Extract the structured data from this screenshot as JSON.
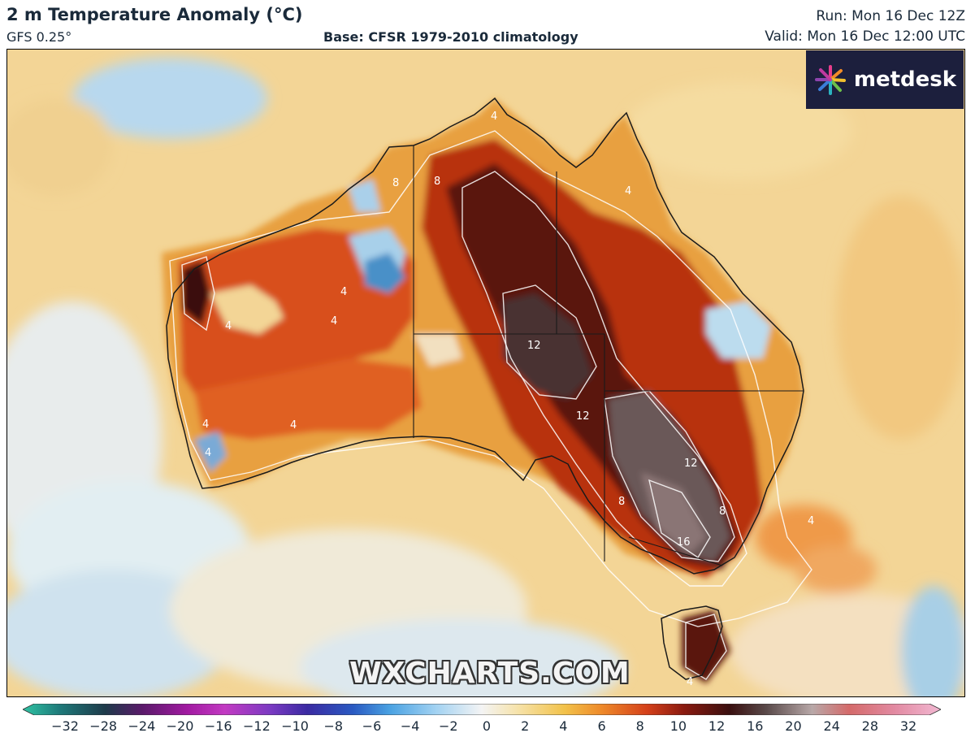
{
  "header": {
    "title": "2 m Temperature Anomaly (°C)",
    "model": "GFS 0.25°",
    "base": "Base: CFSR 1979-2010 climatology",
    "run": "Run: Mon 16 Dec 12Z",
    "valid": "Valid: Mon 16 Dec 12:00 UTC"
  },
  "logo": {
    "text": "metdesk",
    "icon": "starburst-logo-icon"
  },
  "watermark": "WXCHARTS.COM",
  "map": {
    "region": "Australia",
    "contour_labels": [
      "8",
      "8",
      "4",
      "4",
      "4",
      "4",
      "4",
      "12",
      "12",
      "12",
      "8",
      "8",
      "16",
      "4",
      "4",
      "4",
      "4",
      "4"
    ]
  },
  "colorbar": {
    "ticks": [
      "−32",
      "−28",
      "−24",
      "−20",
      "−16",
      "−12",
      "−10",
      "−8",
      "−6",
      "−4",
      "−2",
      "0",
      "2",
      "4",
      "6",
      "8",
      "10",
      "12",
      "16",
      "20",
      "24",
      "28",
      "32"
    ],
    "colors": [
      "#2fc4a4",
      "#1e7a7a",
      "#1e3a4a",
      "#5a1a6a",
      "#a21aa2",
      "#c23ac2",
      "#7a3ac2",
      "#3a2aa2",
      "#2a5ac2",
      "#4aa2e2",
      "#a2d2f2",
      "#f4f4f4",
      "#f6e2a8",
      "#f2c24a",
      "#ee8a2a",
      "#d4401a",
      "#8a1a10",
      "#3a1010",
      "#5a4a4a",
      "#b8a8a8",
      "#d46a6a",
      "#e28aa2",
      "#f2b8d2"
    ]
  }
}
